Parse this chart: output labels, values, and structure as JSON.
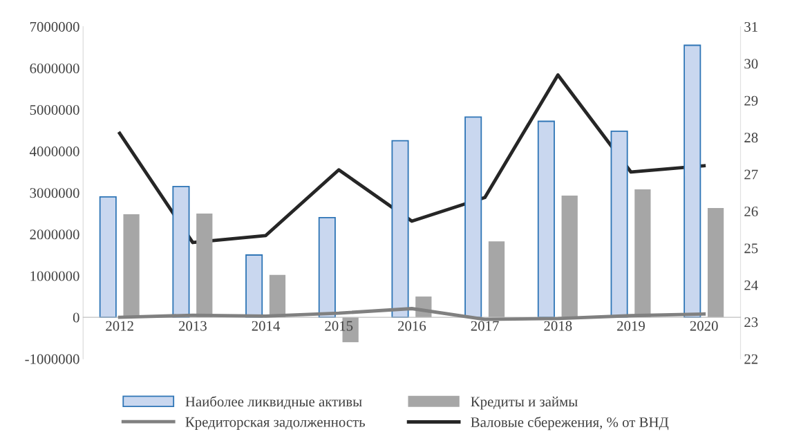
{
  "chart_data": {
    "type": "bar",
    "categories": [
      "2012",
      "2013",
      "2014",
      "2015",
      "2016",
      "2017",
      "2018",
      "2019",
      "2020"
    ],
    "series": [
      {
        "name": "Наиболее ликвидные активы",
        "color": "#2e75b6",
        "values": [
          2900000,
          3150000,
          1500000,
          2400000,
          4250000,
          4820000,
          4720000,
          4480000,
          6550000
        ]
      },
      {
        "name": "Кредиты и займы",
        "color": "#a6a6a6",
        "values": [
          2480000,
          2500000,
          1020000,
          -600000,
          500000,
          1830000,
          2930000,
          3080000,
          2630000
        ]
      },
      {
        "name": "Кредиторская задолженность",
        "color": "#808080",
        "type": "line",
        "values": [
          0,
          50000,
          30000,
          100000,
          210000,
          -50000,
          -30000,
          40000,
          80000
        ]
      },
      {
        "name": "Валовые сбережения, % от ВНД",
        "color": "#262626",
        "type": "line",
        "axis": "y2",
        "values": [
          28.11,
          25.15,
          25.34,
          27.12,
          25.73,
          26.37,
          29.69,
          27.06,
          27.23
        ]
      }
    ],
    "ylim": [
      -1000000,
      7000000
    ],
    "yticks": [
      -1000000,
      0,
      1000000,
      2000000,
      3000000,
      4000000,
      5000000,
      6000000,
      7000000
    ],
    "y2lim": [
      22,
      31
    ],
    "y2ticks": [
      22,
      23,
      24,
      25,
      26,
      27,
      28,
      29,
      30,
      31
    ],
    "grid": false,
    "legend": "bottom",
    "marker": "none",
    "line_style": "solid"
  }
}
